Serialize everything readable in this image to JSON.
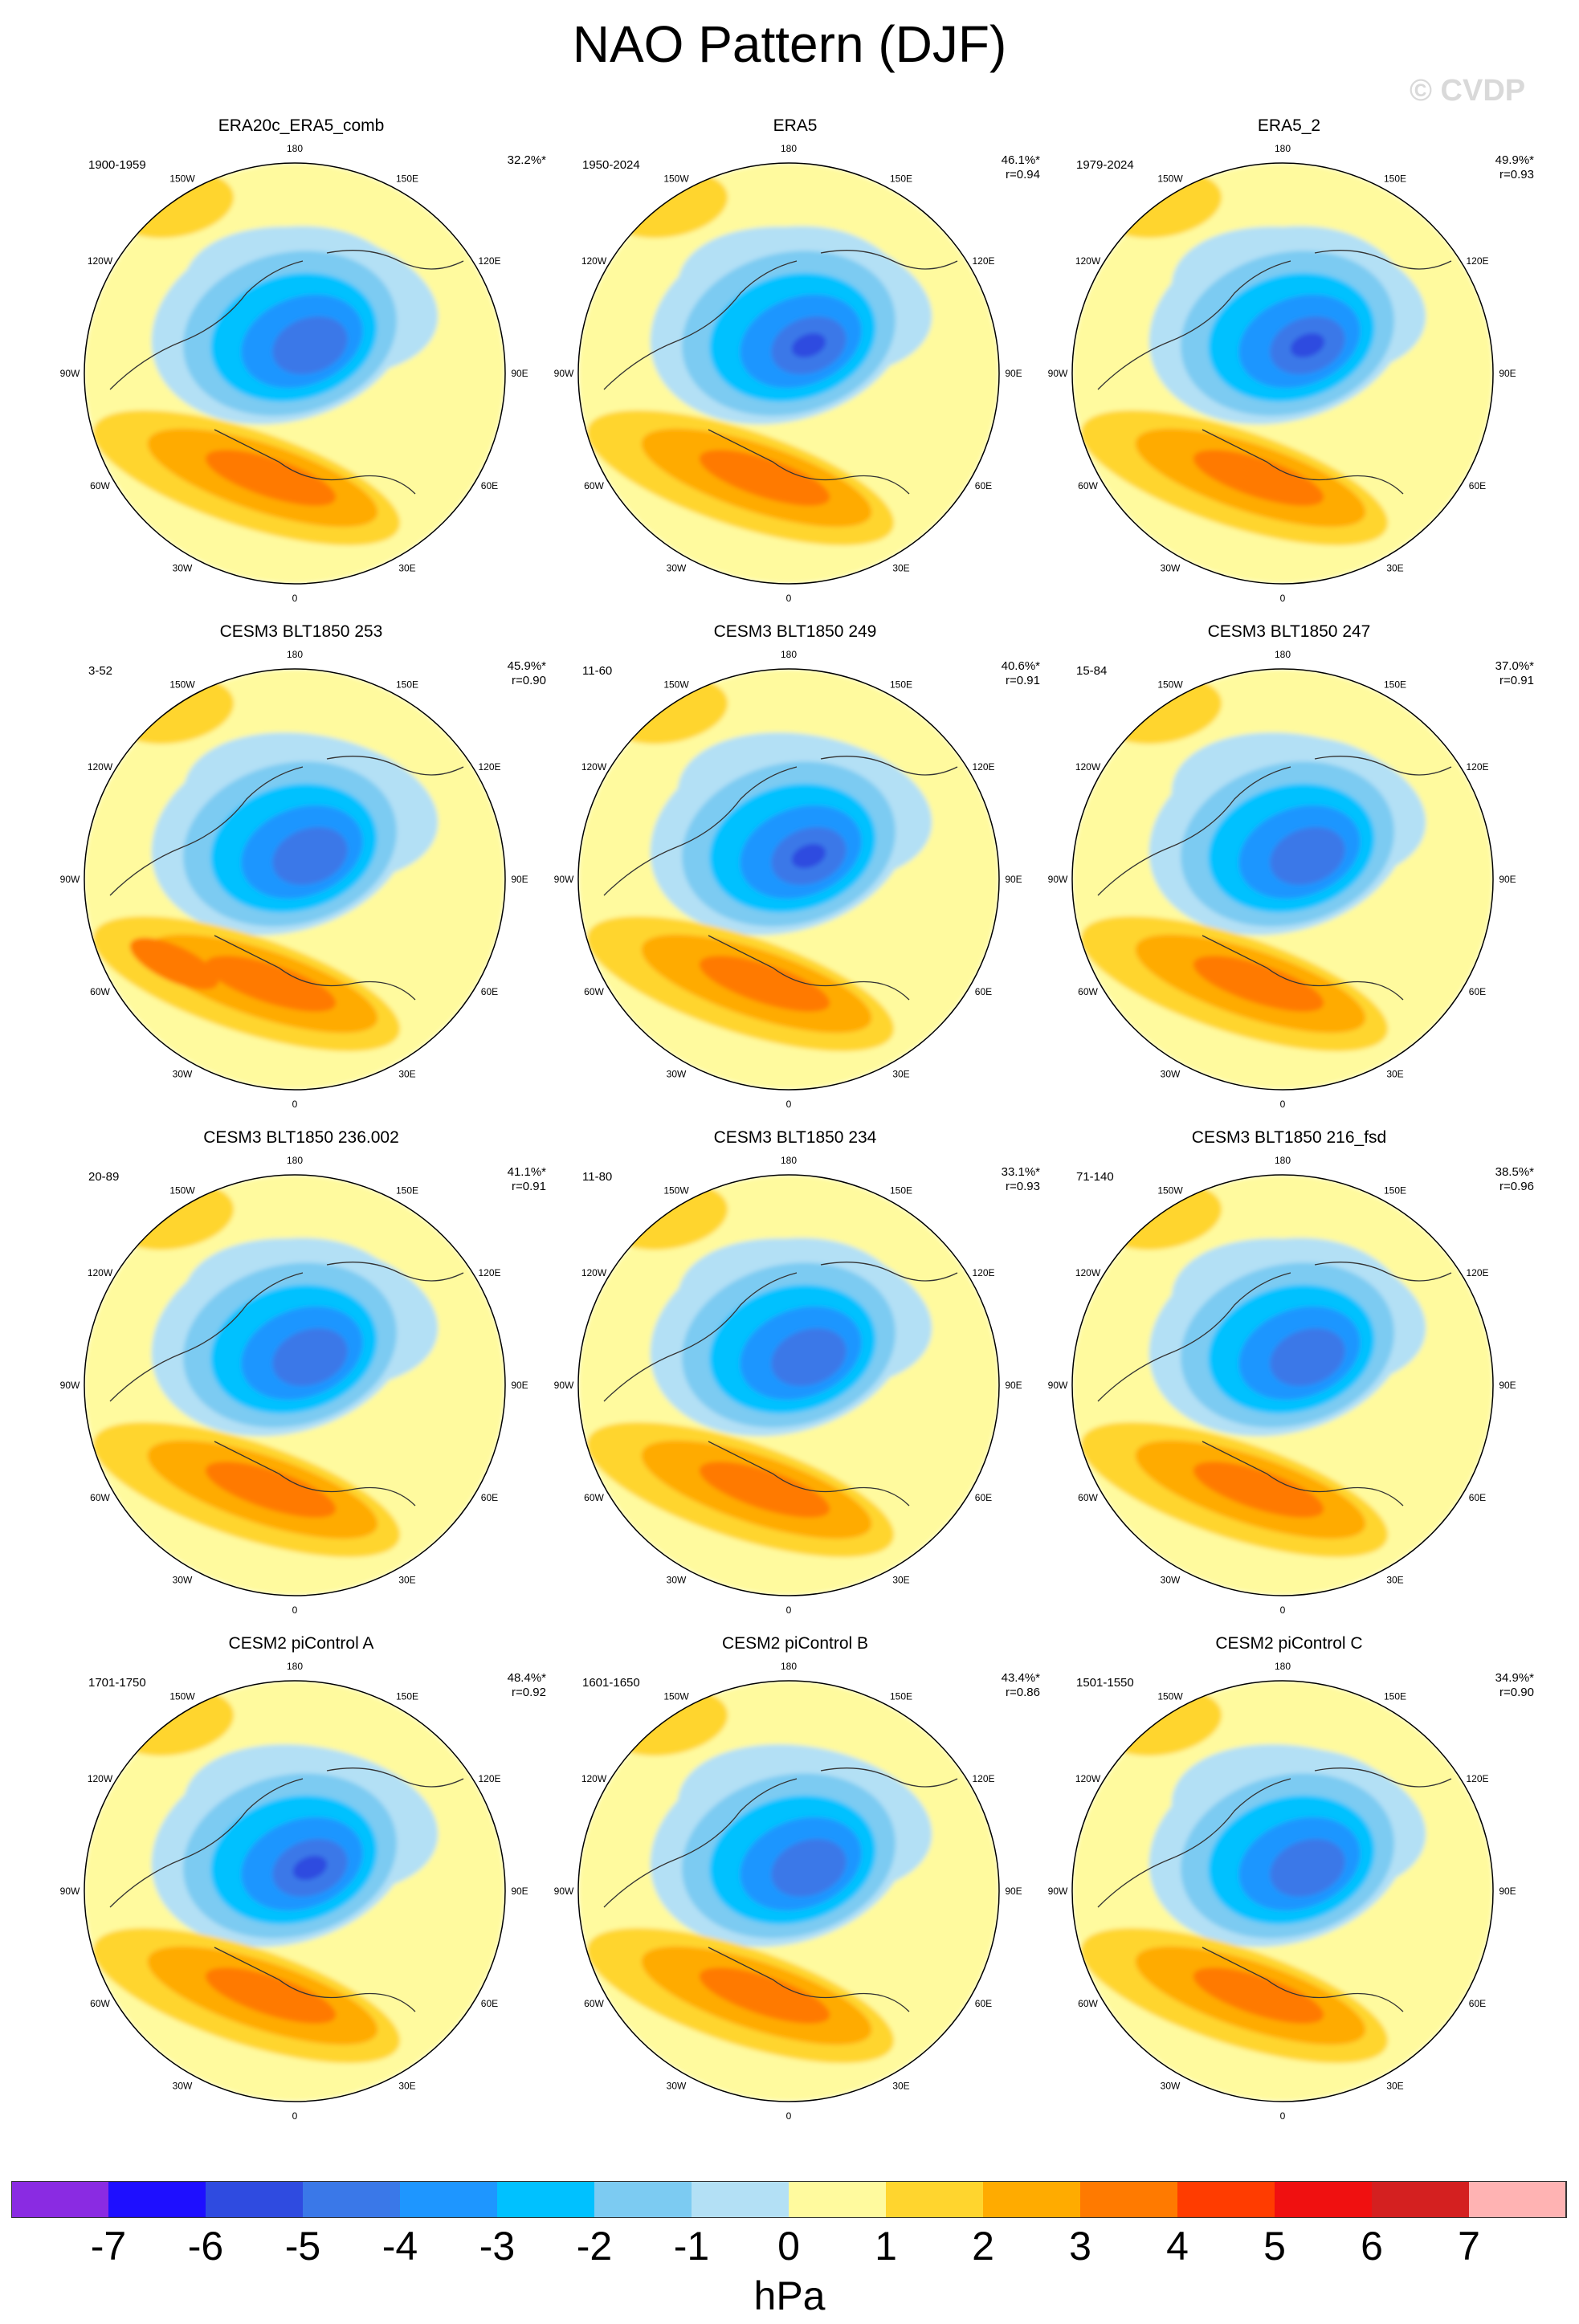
{
  "title": "NAO Pattern (DJF)",
  "watermark": "© CVDP",
  "colorbar": {
    "units": "hPa",
    "ticks": [
      "-7",
      "-6",
      "-5",
      "-4",
      "-3",
      "-2",
      "-1",
      "0",
      "1",
      "2",
      "3",
      "4",
      "5",
      "6",
      "7"
    ],
    "colors": [
      "#8a2be2",
      "#1e0fff",
      "#2f4be0",
      "#3a78e8",
      "#1e96ff",
      "#00c1ff",
      "#7ccbf2",
      "#b3e0f5",
      "#fffa9e",
      "#ffd52e",
      "#ffab00",
      "#ff7a00",
      "#ff3c00",
      "#f01010",
      "#d42020",
      "#ffb3b3"
    ]
  },
  "lon_labels": [
    "180",
    "150E",
    "120E",
    "90E",
    "60E",
    "30E",
    "0",
    "30W",
    "60W",
    "90W",
    "120W",
    "150W"
  ],
  "chart_data": [
    {
      "type": "heatmap",
      "title": "ERA20c_ERA5_comb",
      "years": "1900-1959",
      "pct": "32.2%*",
      "r": ""
    },
    {
      "type": "heatmap",
      "title": "ERA5",
      "years": "1950-2024",
      "pct": "46.1%*",
      "r": "r=0.94"
    },
    {
      "type": "heatmap",
      "title": "ERA5_2",
      "years": "1979-2024",
      "pct": "49.9%*",
      "r": "r=0.93"
    },
    {
      "type": "heatmap",
      "title": "CESM3 BLT1850 253",
      "years": "3-52",
      "pct": "45.9%*",
      "r": "r=0.90"
    },
    {
      "type": "heatmap",
      "title": "CESM3 BLT1850 249",
      "years": "11-60",
      "pct": "40.6%*",
      "r": "r=0.91"
    },
    {
      "type": "heatmap",
      "title": "CESM3 BLT1850 247",
      "years": "15-84",
      "pct": "37.0%*",
      "r": "r=0.91"
    },
    {
      "type": "heatmap",
      "title": "CESM3 BLT1850 236.002",
      "years": "20-89",
      "pct": "41.1%*",
      "r": "r=0.91"
    },
    {
      "type": "heatmap",
      "title": "CESM3 BLT1850 234",
      "years": "11-80",
      "pct": "33.1%*",
      "r": "r=0.93"
    },
    {
      "type": "heatmap",
      "title": "CESM3 BLT1850 216_fsd",
      "years": "71-140",
      "pct": "38.5%*",
      "r": "r=0.96"
    },
    {
      "type": "heatmap",
      "title": "CESM2 piControl A",
      "years": "1701-1750",
      "pct": "48.4%*",
      "r": "r=0.92"
    },
    {
      "type": "heatmap",
      "title": "CESM2 piControl B",
      "years": "1601-1650",
      "pct": "43.4%*",
      "r": "r=0.86"
    },
    {
      "type": "heatmap",
      "title": "CESM2 piControl C",
      "years": "1501-1550",
      "pct": "34.9%*",
      "r": "r=0.90"
    }
  ]
}
